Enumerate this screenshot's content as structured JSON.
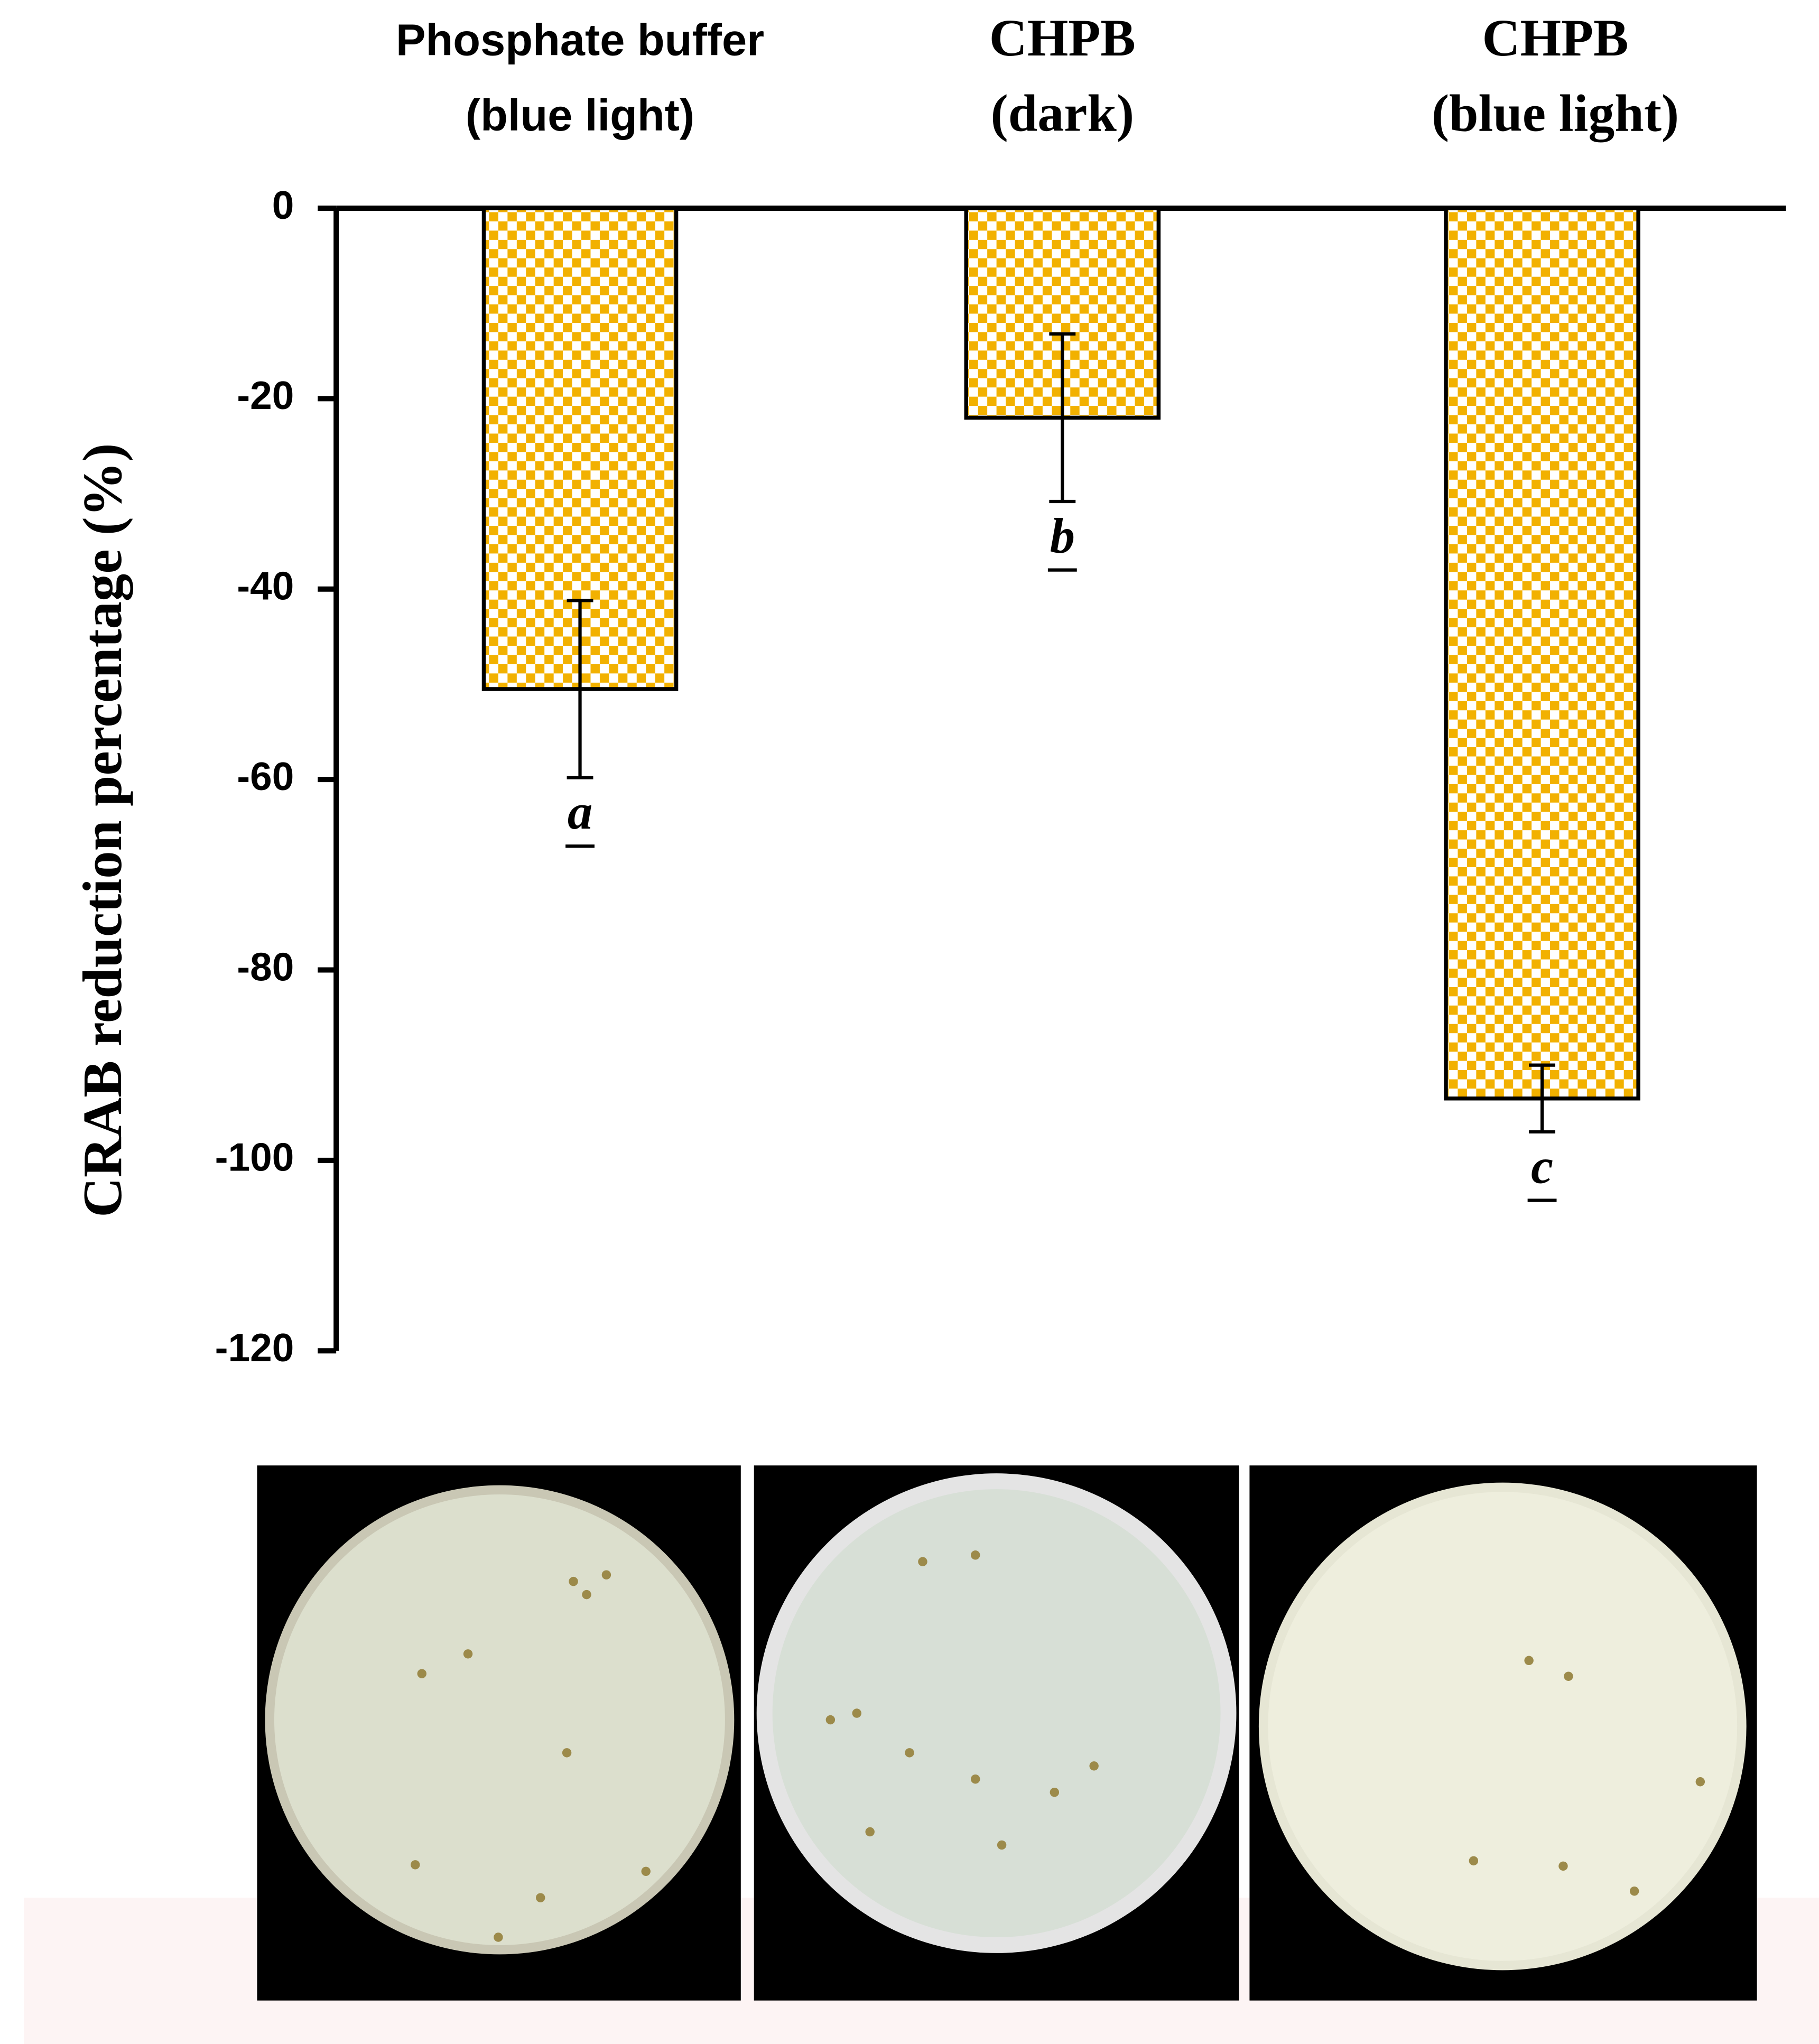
{
  "chart_data": {
    "type": "bar",
    "y_label": "CRAB reduction percentage (%)",
    "categories": [
      [
        "Phosphate buffer",
        "(blue light)"
      ],
      [
        "CHPB",
        "(dark)"
      ],
      [
        "CHPB",
        "(blue light)"
      ]
    ],
    "values": [
      -50.5,
      -22,
      -93.5
    ],
    "errors": [
      9.3,
      8.8,
      3.5
    ],
    "letters": [
      "a",
      "b",
      "c"
    ],
    "color": "#f2b100",
    "ylim": [
      -120,
      0
    ],
    "yticks": [
      0,
      -20,
      -40,
      -60,
      -80,
      -100,
      -120
    ]
  }
}
